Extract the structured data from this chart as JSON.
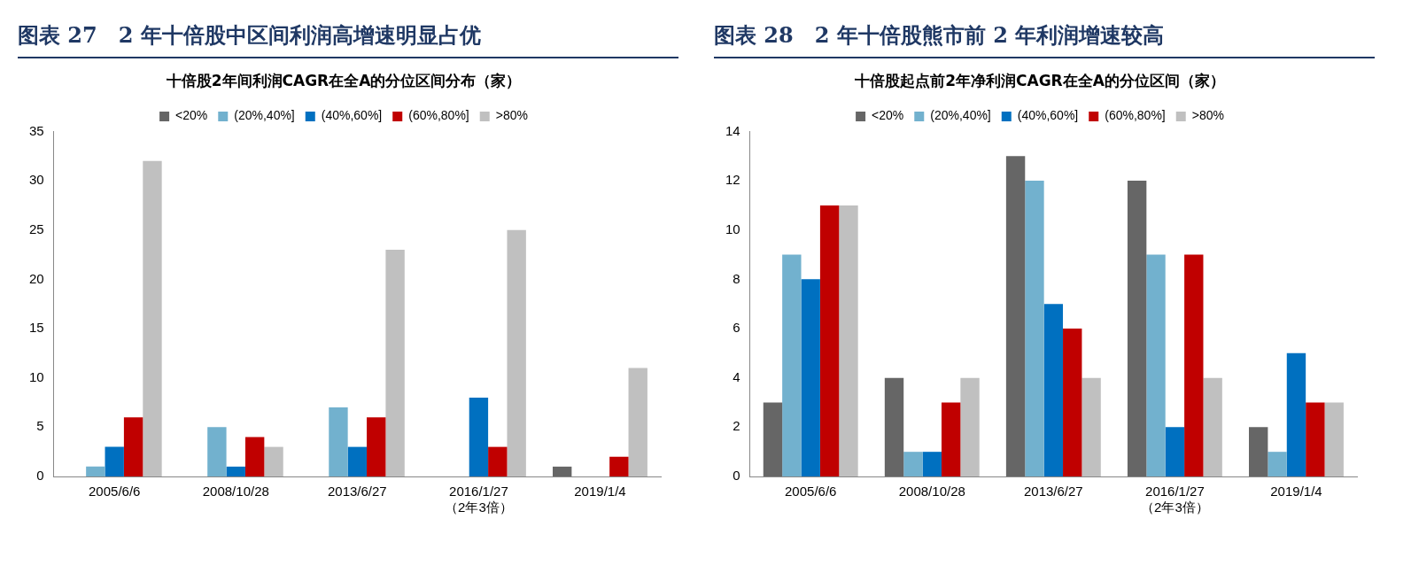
{
  "chart_data": [
    {
      "type": "bar",
      "title": "图表 27　2 年十倍股中区间利润高增速明显占优",
      "subtitle": "十倍股2年间利润CAGR在全A的分位区间分布（家）",
      "categories": [
        "2005/6/6",
        "2008/10/28",
        "2013/6/27",
        "2016/1/27\n（2年3倍）",
        "2019/1/4"
      ],
      "series": [
        {
          "name": "<20%",
          "color": "#666666",
          "values": [
            0,
            0,
            0,
            0,
            1
          ]
        },
        {
          "name": "(20%,40%]",
          "color": "#72b1ce",
          "values": [
            1,
            5,
            7,
            0,
            0
          ]
        },
        {
          "name": "(40%,60%]",
          "color": "#0070c0",
          "values": [
            3,
            1,
            3,
            8,
            0
          ]
        },
        {
          "name": "(60%,80%]",
          "color": "#c00000",
          "values": [
            6,
            4,
            6,
            3,
            2
          ]
        },
        {
          "name": ">80%",
          "color": "#c0c0c0",
          "values": [
            32,
            3,
            23,
            25,
            11
          ]
        }
      ],
      "ylim": [
        0,
        35
      ],
      "yticks": [
        0,
        5,
        10,
        15,
        20,
        25,
        30,
        35
      ],
      "grid": false,
      "legend": "top"
    },
    {
      "type": "bar",
      "title": "图表 28　2 年十倍股熊市前 2 年利润增速较高",
      "subtitle": "十倍股起点前2年净利润CAGR在全A的分位区间（家）",
      "categories": [
        "2005/6/6",
        "2008/10/28",
        "2013/6/27",
        "2016/1/27\n（2年3倍）",
        "2019/1/4"
      ],
      "series": [
        {
          "name": "<20%",
          "color": "#666666",
          "values": [
            3,
            4,
            13,
            12,
            2
          ]
        },
        {
          "name": "(20%,40%]",
          "color": "#72b1ce",
          "values": [
            9,
            1,
            12,
            9,
            1
          ]
        },
        {
          "name": "(40%,60%]",
          "color": "#0070c0",
          "values": [
            8,
            1,
            7,
            2,
            5
          ]
        },
        {
          "name": "(60%,80%]",
          "color": "#c00000",
          "values": [
            11,
            3,
            6,
            9,
            3
          ]
        },
        {
          "name": ">80%",
          "color": "#c0c0c0",
          "values": [
            11,
            4,
            4,
            4,
            3
          ]
        }
      ],
      "ylim": [
        0,
        14
      ],
      "yticks": [
        0,
        2,
        4,
        6,
        8,
        10,
        12,
        14
      ],
      "grid": false,
      "legend": "top"
    }
  ]
}
